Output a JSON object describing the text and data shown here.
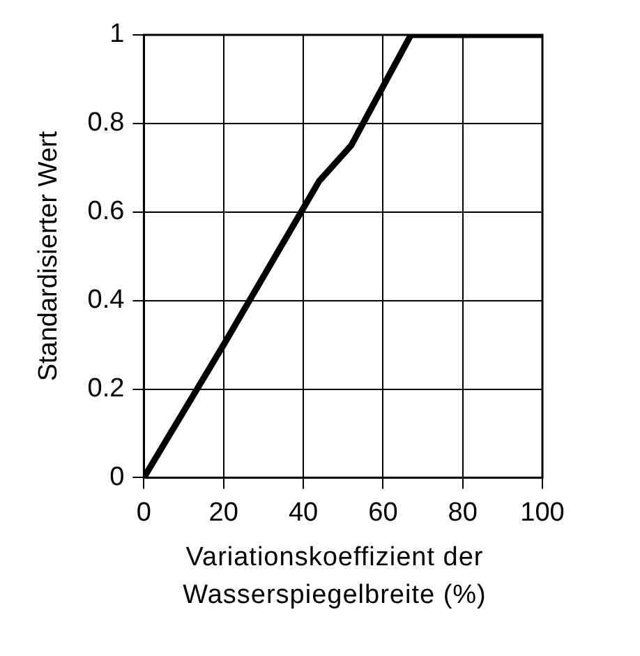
{
  "chart_data": {
    "type": "line",
    "xlabel": "Variationskoeffizient der Wasserspiegelbreite (%)",
    "ylabel": "Standardisierter Wert",
    "series": [
      {
        "color": "#000000",
        "x": [
          0,
          20,
          44,
          52,
          67,
          100
        ],
        "values": [
          0,
          0.3,
          0.67,
          0.75,
          1,
          1
        ]
      }
    ],
    "xlim": [
      0,
      100
    ],
    "xticks": [
      0,
      20,
      40,
      60,
      80,
      100
    ],
    "ylim": [
      0,
      1
    ],
    "yticks": [
      0,
      0.2,
      0.4,
      0.6,
      0.8,
      1
    ],
    "grid": true,
    "legend": false,
    "marker": "none",
    "line_style": "solid"
  }
}
